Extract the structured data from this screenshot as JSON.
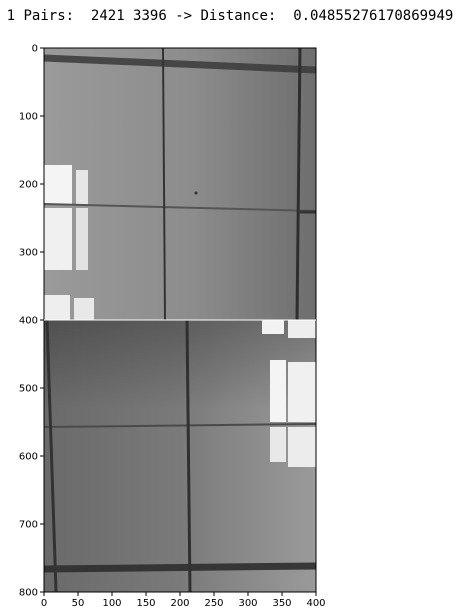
{
  "figure": {
    "title": "1 Pairs:  2421 3396 -> Distance:  0.04855276170869949"
  },
  "chart_data": {
    "type": "image",
    "title": "1 Pairs:  2421 3396 -> Distance:  0.04855276170869949",
    "xlabel": "",
    "ylabel": "",
    "xlim": [
      0,
      400
    ],
    "ylim": [
      800,
      0
    ],
    "x_ticks": [
      0,
      50,
      100,
      150,
      200,
      250,
      300,
      350,
      400
    ],
    "y_ticks": [
      0,
      100,
      200,
      300,
      400,
      500,
      600,
      700,
      800
    ],
    "grid": false,
    "legend": "none",
    "panels": [
      {
        "name": "top-image",
        "y_range": [
          0,
          400
        ],
        "content": "grayscale floor tiles with window light patch on the left"
      },
      {
        "name": "bottom-image",
        "y_range": [
          400,
          800
        ],
        "content": "grayscale floor tiles with window light patch on the right"
      }
    ]
  }
}
